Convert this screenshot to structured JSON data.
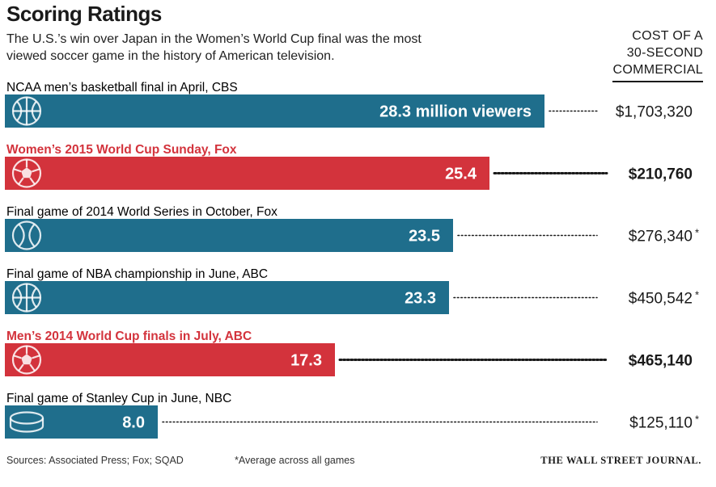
{
  "colors": {
    "blue": "#1f6e8c",
    "red": "#d3333c",
    "text": "#1a1a1a",
    "highlight_text": "#d3333c"
  },
  "header": {
    "title": "Scoring Ratings",
    "subtitle": "The U.S.’s win over Japan in the Women’s World Cup final was the most viewed soccer game in the history of American television.",
    "cost_header": [
      "COST OF A",
      "30-SECOND",
      "COMMERCIAL"
    ]
  },
  "chart_data": {
    "type": "bar",
    "orientation": "horizontal",
    "title": "Scoring Ratings",
    "unit": "million viewers",
    "xlim": [
      0,
      28.3
    ],
    "categories": [
      "NCAA men’s basketball final in April, CBS",
      "Women’s 2015 World Cup Sunday, Fox",
      "Final game of 2014 World Series in October, Fox",
      "Final game of NBA championship in June, ABC",
      "Men’s 2014 World Cup finals in July, ABC",
      "Final game of Stanley Cup in June, NBC"
    ],
    "values": [
      28.3,
      25.4,
      23.5,
      23.3,
      17.3,
      8.0
    ],
    "value_labels": [
      "28.3 million viewers",
      "25.4",
      "23.5",
      "23.3",
      "17.3",
      "8.0"
    ],
    "costs": [
      "$1,703,320",
      "$210,760",
      "$276,340",
      "$450,542",
      "$465,140",
      "$125,110"
    ],
    "cost_asterisk": [
      false,
      false,
      true,
      true,
      false,
      true
    ],
    "highlight": [
      false,
      true,
      false,
      false,
      true,
      false
    ],
    "icons": [
      "basketball-icon",
      "soccer-ball-icon",
      "baseball-icon",
      "basketball-icon",
      "soccer-ball-icon",
      "hockey-puck-icon"
    ]
  },
  "footer": {
    "sources": "Sources: Associated Press; Fox; SQAD",
    "note": "*Average across all games",
    "credit": "THE WALL STREET JOURNAL."
  }
}
